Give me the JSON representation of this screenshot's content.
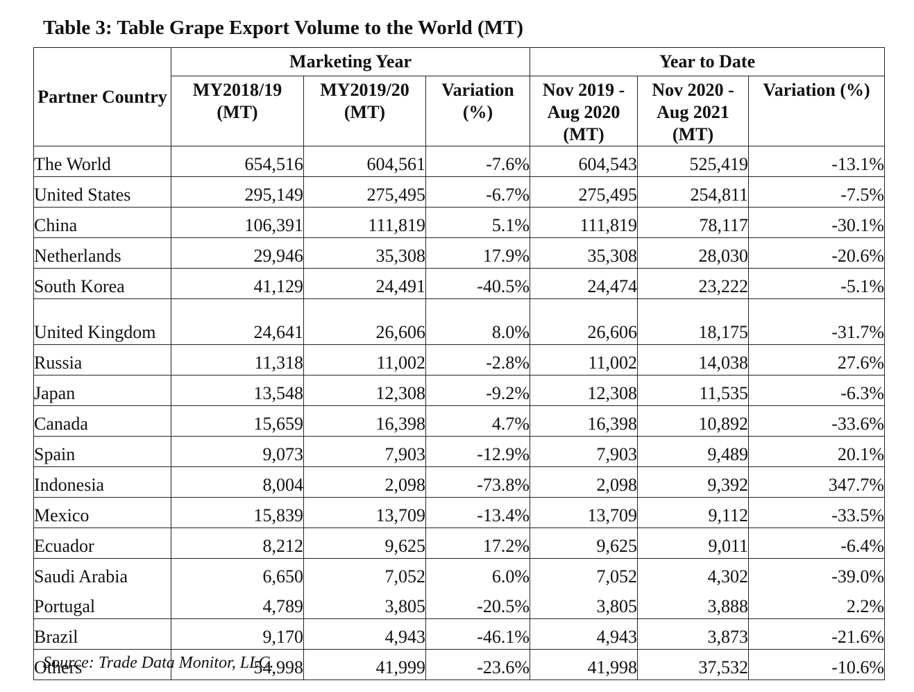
{
  "title": "Table 3: Table Grape Export Volume to the World (MT)",
  "headers": {
    "partner": "Partner Country",
    "marketing_year": "Marketing Year",
    "year_to_date": "Year to Date",
    "columns": [
      "MY2018/19 (MT)",
      "MY2019/20 (MT)",
      "Variation (%)",
      "Nov 2019 - Aug 2020 (MT)",
      "Nov 2020 - Aug 2021 (MT)",
      "Variation (%)"
    ]
  },
  "rows": [
    {
      "country": "The World",
      "my1819": "654,516",
      "my1920": "604,561",
      "var_my": "-7.6%",
      "ytd1": "604,543",
      "ytd2": "525,419",
      "var_ytd": "-13.1%"
    },
    {
      "country": "United States",
      "my1819": "295,149",
      "my1920": "275,495",
      "var_my": "-6.7%",
      "ytd1": "275,495",
      "ytd2": "254,811",
      "var_ytd": "-7.5%"
    },
    {
      "country": "China",
      "my1819": "106,391",
      "my1920": "111,819",
      "var_my": "5.1%",
      "ytd1": "111,819",
      "ytd2": "78,117",
      "var_ytd": "-30.1%"
    },
    {
      "country": "Netherlands",
      "my1819": "29,946",
      "my1920": "35,308",
      "var_my": "17.9%",
      "ytd1": "35,308",
      "ytd2": "28,030",
      "var_ytd": "-20.6%"
    },
    {
      "country": "South Korea",
      "my1819": "41,129",
      "my1920": "24,491",
      "var_my": "-40.5%",
      "ytd1": "24,474",
      "ytd2": "23,222",
      "var_ytd": "-5.1%"
    },
    {
      "country": "United Kingdom",
      "my1819": "24,641",
      "my1920": "26,606",
      "var_my": "8.0%",
      "ytd1": "26,606",
      "ytd2": "18,175",
      "var_ytd": "-31.7%"
    },
    {
      "country": "Russia",
      "my1819": "11,318",
      "my1920": "11,002",
      "var_my": "-2.8%",
      "ytd1": "11,002",
      "ytd2": "14,038",
      "var_ytd": "27.6%"
    },
    {
      "country": "Japan",
      "my1819": "13,548",
      "my1920": "12,308",
      "var_my": "-9.2%",
      "ytd1": "12,308",
      "ytd2": "11,535",
      "var_ytd": "-6.3%"
    },
    {
      "country": "Canada",
      "my1819": "15,659",
      "my1920": "16,398",
      "var_my": "4.7%",
      "ytd1": "16,398",
      "ytd2": "10,892",
      "var_ytd": "-33.6%"
    },
    {
      "country": "Spain",
      "my1819": "9,073",
      "my1920": "7,903",
      "var_my": "-12.9%",
      "ytd1": "7,903",
      "ytd2": "9,489",
      "var_ytd": "20.1%"
    },
    {
      "country": "Indonesia",
      "my1819": "8,004",
      "my1920": "2,098",
      "var_my": "-73.8%",
      "ytd1": "2,098",
      "ytd2": "9,392",
      "var_ytd": "347.7%"
    },
    {
      "country": "Mexico",
      "my1819": "15,839",
      "my1920": "13,709",
      "var_my": "-13.4%",
      "ytd1": "13,709",
      "ytd2": "9,112",
      "var_ytd": "-33.5%"
    },
    {
      "country": "Ecuador",
      "my1819": "8,212",
      "my1920": "9,625",
      "var_my": "17.2%",
      "ytd1": "9,625",
      "ytd2": "9,011",
      "var_ytd": "-6.4%"
    },
    {
      "country": "Saudi Arabia",
      "my1819": "6,650",
      "my1920": "7,052",
      "var_my": "6.0%",
      "ytd1": "7,052",
      "ytd2": "4,302",
      "var_ytd": "-39.0%"
    },
    {
      "country": "Portugal",
      "my1819": "4,789",
      "my1920": "3,805",
      "var_my": "-20.5%",
      "ytd1": "3,805",
      "ytd2": "3,888",
      "var_ytd": "2.2%"
    },
    {
      "country": "Brazil",
      "my1819": "9,170",
      "my1920": "4,943",
      "var_my": "-46.1%",
      "ytd1": "4,943",
      "ytd2": "3,873",
      "var_ytd": "-21.6%"
    },
    {
      "country": "Others",
      "my1819": "54,998",
      "my1920": "41,999",
      "var_my": "-23.6%",
      "ytd1": "41,998",
      "ytd2": "37,532",
      "var_ytd": "-10.6%"
    }
  ],
  "source": "Source: Trade Data Monitor, LLC."
}
